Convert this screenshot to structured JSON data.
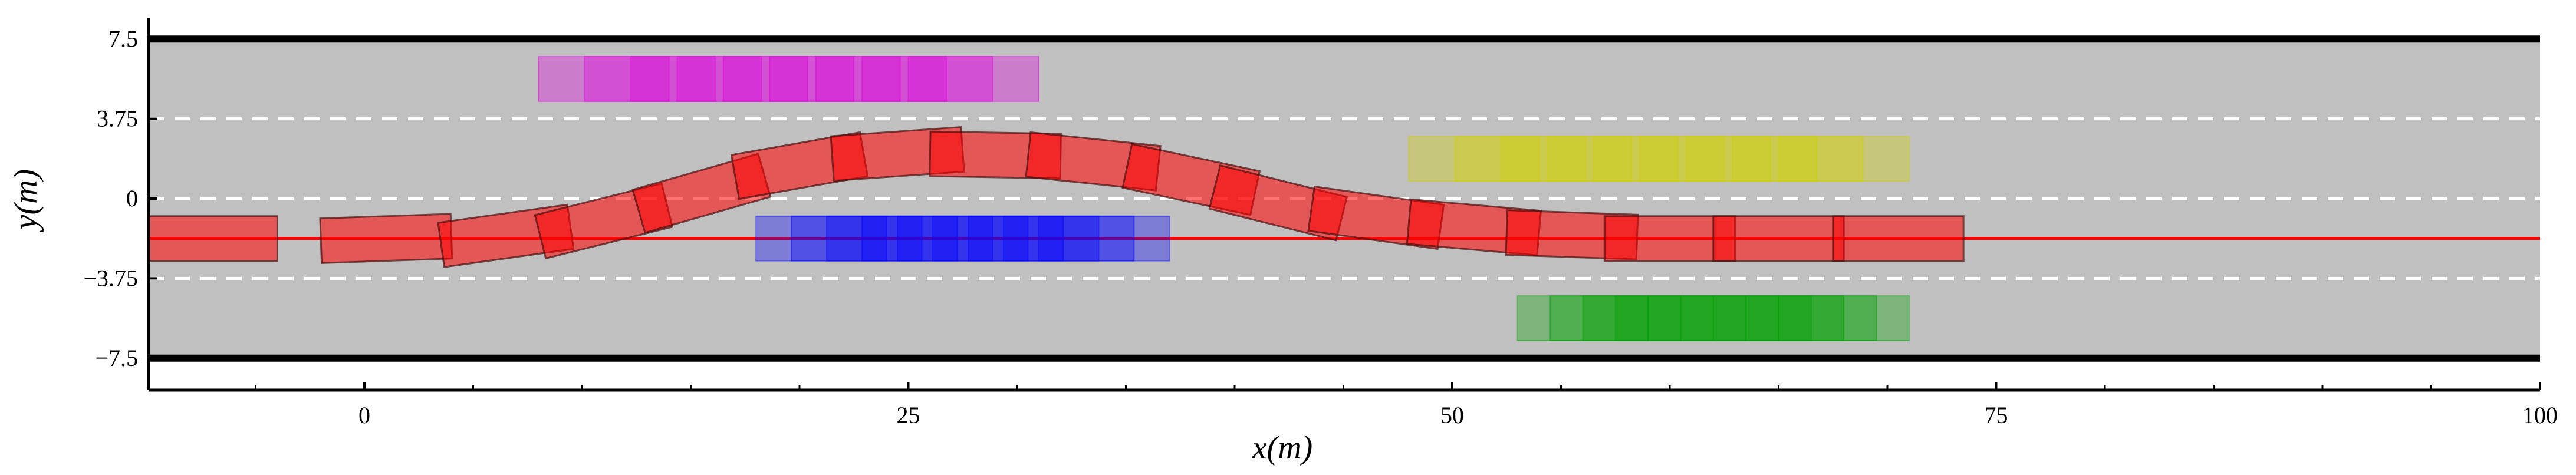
{
  "chart_data": {
    "type": "scatter",
    "title": "",
    "xlabel": "x(m)",
    "ylabel": "y(m)",
    "xlim": [
      -10,
      100
    ],
    "ylim": [
      -8.8,
      8.2
    ],
    "xticks": [
      0,
      25,
      50,
      75,
      100
    ],
    "xtick_labels": [
      "0",
      "25",
      "50",
      "75",
      "100"
    ],
    "yticks": [
      7.5,
      3.75,
      0,
      -3.75,
      -7.5
    ],
    "ytick_labels": [
      "7.5",
      "3.75",
      "0",
      "−3.75",
      "−7.5"
    ],
    "grid": false,
    "colors": {
      "road": "#c0c0c0",
      "road_edge": "#000000",
      "lane_divider": "#ffffff",
      "reference_line": "#ff0000",
      "ego": "#ff0000",
      "magenta": "#e000e0",
      "blue": "#0000ff",
      "yellow": "#d0d000",
      "green": "#00a000"
    },
    "road": {
      "edges": [
        7.5,
        -7.5
      ],
      "lane_dividers": [
        3.75,
        0,
        -3.75
      ],
      "reference_line_y": -1.875
    },
    "vehicle_length": 6,
    "vehicle_width": 2.1,
    "ego_trajectory": {
      "x": [
        -7,
        1,
        6.5,
        11,
        15.5,
        20,
        24.5,
        29,
        33.5,
        38,
        42,
        46.5,
        51,
        55.5,
        60,
        65,
        70.5
      ],
      "y": [
        -1.875,
        -1.875,
        -1.75,
        -1.05,
        0.25,
        1.55,
        2.1,
        2.05,
        1.75,
        0.9,
        -0.2,
        -0.9,
        -1.35,
        -1.7,
        -1.875,
        -1.875,
        -1.875
      ],
      "heading_deg": [
        0,
        2,
        8,
        14,
        16,
        10,
        4,
        -1,
        -6,
        -12,
        -14,
        -8,
        -5,
        -2,
        0,
        0,
        0
      ]
    },
    "obstacles": [
      {
        "color": "magenta",
        "y": 5.625,
        "x_start": 8,
        "x_end": 31
      },
      {
        "color": "blue",
        "y": -1.875,
        "x_start": 18,
        "x_end": 37
      },
      {
        "color": "yellow",
        "y": 1.875,
        "x_start": 48,
        "x_end": 71
      },
      {
        "color": "green",
        "y": -5.625,
        "x_start": 53,
        "x_end": 71
      }
    ]
  }
}
